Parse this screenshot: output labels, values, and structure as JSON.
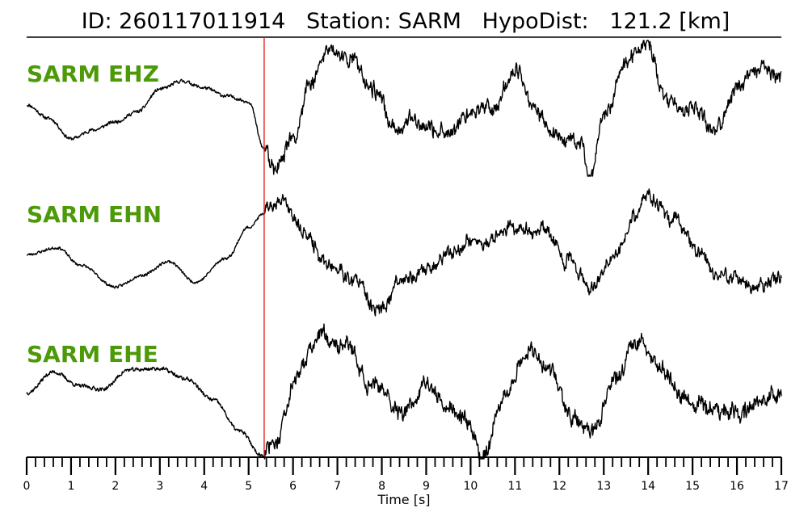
{
  "header": {
    "id_label": "ID:",
    "id_value": "260117011914",
    "station_label": "Station:",
    "station_value": "SARM",
    "dist_label": "HypoDist:",
    "dist_value": "121.2",
    "dist_unit": "[km]"
  },
  "colors": {
    "trace": "#000000",
    "pick_line": "#e32020",
    "label": "#4c9a08"
  },
  "chart_data": {
    "type": "line",
    "xlabel": "Time [s]",
    "xlim": [
      0,
      17
    ],
    "major_ticks": [
      0,
      1,
      2,
      3,
      4,
      5,
      6,
      7,
      8,
      9,
      10,
      11,
      12,
      13,
      14,
      15,
      16,
      17
    ],
    "minor_tick_step": 0.2,
    "pick_time": 5.35,
    "series": [
      {
        "name": "SARM EHZ",
        "amplitude_range": [
          -1,
          1
        ],
        "seed": 11,
        "noise": 0.05,
        "anchors": [
          [
            0.0,
            0.05
          ],
          [
            0.5,
            -0.15
          ],
          [
            1.0,
            -0.45
          ],
          [
            1.5,
            -0.32
          ],
          [
            2.0,
            -0.2
          ],
          [
            2.5,
            -0.05
          ],
          [
            3.0,
            0.28
          ],
          [
            3.5,
            0.4
          ],
          [
            4.0,
            0.3
          ],
          [
            4.5,
            0.18
          ],
          [
            5.0,
            0.1
          ],
          [
            5.35,
            -0.6
          ],
          [
            5.6,
            -0.92
          ],
          [
            6.0,
            -0.5
          ],
          [
            6.4,
            0.35
          ],
          [
            6.8,
            0.85
          ],
          [
            7.3,
            0.75
          ],
          [
            7.8,
            0.3
          ],
          [
            8.3,
            -0.3
          ],
          [
            8.8,
            -0.15
          ],
          [
            9.4,
            -0.4
          ],
          [
            10.0,
            -0.05
          ],
          [
            10.5,
            0.0
          ],
          [
            11.0,
            0.55
          ],
          [
            11.5,
            -0.1
          ],
          [
            12.0,
            -0.45
          ],
          [
            12.5,
            -0.55
          ],
          [
            12.7,
            -0.98
          ],
          [
            13.0,
            -0.1
          ],
          [
            13.5,
            0.65
          ],
          [
            14.0,
            0.95
          ],
          [
            14.4,
            0.1
          ],
          [
            15.0,
            -0.05
          ],
          [
            15.5,
            -0.3
          ],
          [
            16.0,
            0.3
          ],
          [
            16.5,
            0.6
          ],
          [
            17.0,
            0.45
          ]
        ]
      },
      {
        "name": "SARM EHN",
        "amplitude_range": [
          -1,
          1
        ],
        "seed": 23,
        "noise": 0.04,
        "anchors": [
          [
            0.0,
            -0.05
          ],
          [
            0.7,
            0.05
          ],
          [
            1.2,
            -0.2
          ],
          [
            2.0,
            -0.52
          ],
          [
            2.6,
            -0.35
          ],
          [
            3.2,
            -0.15
          ],
          [
            3.8,
            -0.45
          ],
          [
            4.5,
            -0.1
          ],
          [
            5.0,
            0.35
          ],
          [
            5.35,
            0.55
          ],
          [
            5.7,
            0.75
          ],
          [
            6.2,
            0.3
          ],
          [
            6.8,
            -0.2
          ],
          [
            7.4,
            -0.45
          ],
          [
            7.9,
            -0.9
          ],
          [
            8.4,
            -0.45
          ],
          [
            8.9,
            -0.3
          ],
          [
            9.6,
            0.0
          ],
          [
            10.2,
            0.15
          ],
          [
            11.0,
            0.35
          ],
          [
            11.7,
            0.25
          ],
          [
            12.2,
            -0.15
          ],
          [
            12.8,
            -0.55
          ],
          [
            13.2,
            -0.1
          ],
          [
            13.7,
            0.45
          ],
          [
            14.0,
            0.82
          ],
          [
            14.6,
            0.5
          ],
          [
            15.1,
            0.0
          ],
          [
            15.5,
            -0.3
          ],
          [
            16.0,
            -0.4
          ],
          [
            16.5,
            -0.55
          ],
          [
            17.0,
            -0.3
          ]
        ]
      },
      {
        "name": "SARM EHE",
        "amplitude_range": [
          -1,
          1
        ],
        "seed": 37,
        "noise": 0.055,
        "anchors": [
          [
            0.0,
            -0.05
          ],
          [
            0.6,
            0.25
          ],
          [
            1.2,
            0.05
          ],
          [
            1.7,
            0.0
          ],
          [
            2.3,
            0.28
          ],
          [
            3.0,
            0.3
          ],
          [
            3.6,
            0.15
          ],
          [
            4.2,
            -0.15
          ],
          [
            4.8,
            -0.6
          ],
          [
            5.3,
            -0.95
          ],
          [
            5.6,
            -0.7
          ],
          [
            6.1,
            0.2
          ],
          [
            6.6,
            0.75
          ],
          [
            7.2,
            0.62
          ],
          [
            7.7,
            0.1
          ],
          [
            8.4,
            -0.3
          ],
          [
            9.0,
            0.05
          ],
          [
            9.5,
            -0.25
          ],
          [
            9.9,
            -0.45
          ],
          [
            10.3,
            -0.98
          ],
          [
            10.7,
            -0.1
          ],
          [
            11.3,
            0.55
          ],
          [
            11.8,
            0.25
          ],
          [
            12.3,
            -0.45
          ],
          [
            12.8,
            -0.6
          ],
          [
            13.2,
            0.1
          ],
          [
            13.8,
            0.75
          ],
          [
            14.3,
            0.3
          ],
          [
            14.8,
            -0.15
          ],
          [
            15.4,
            -0.25
          ],
          [
            16.0,
            -0.35
          ],
          [
            16.6,
            -0.15
          ],
          [
            17.0,
            -0.05
          ]
        ]
      }
    ]
  }
}
